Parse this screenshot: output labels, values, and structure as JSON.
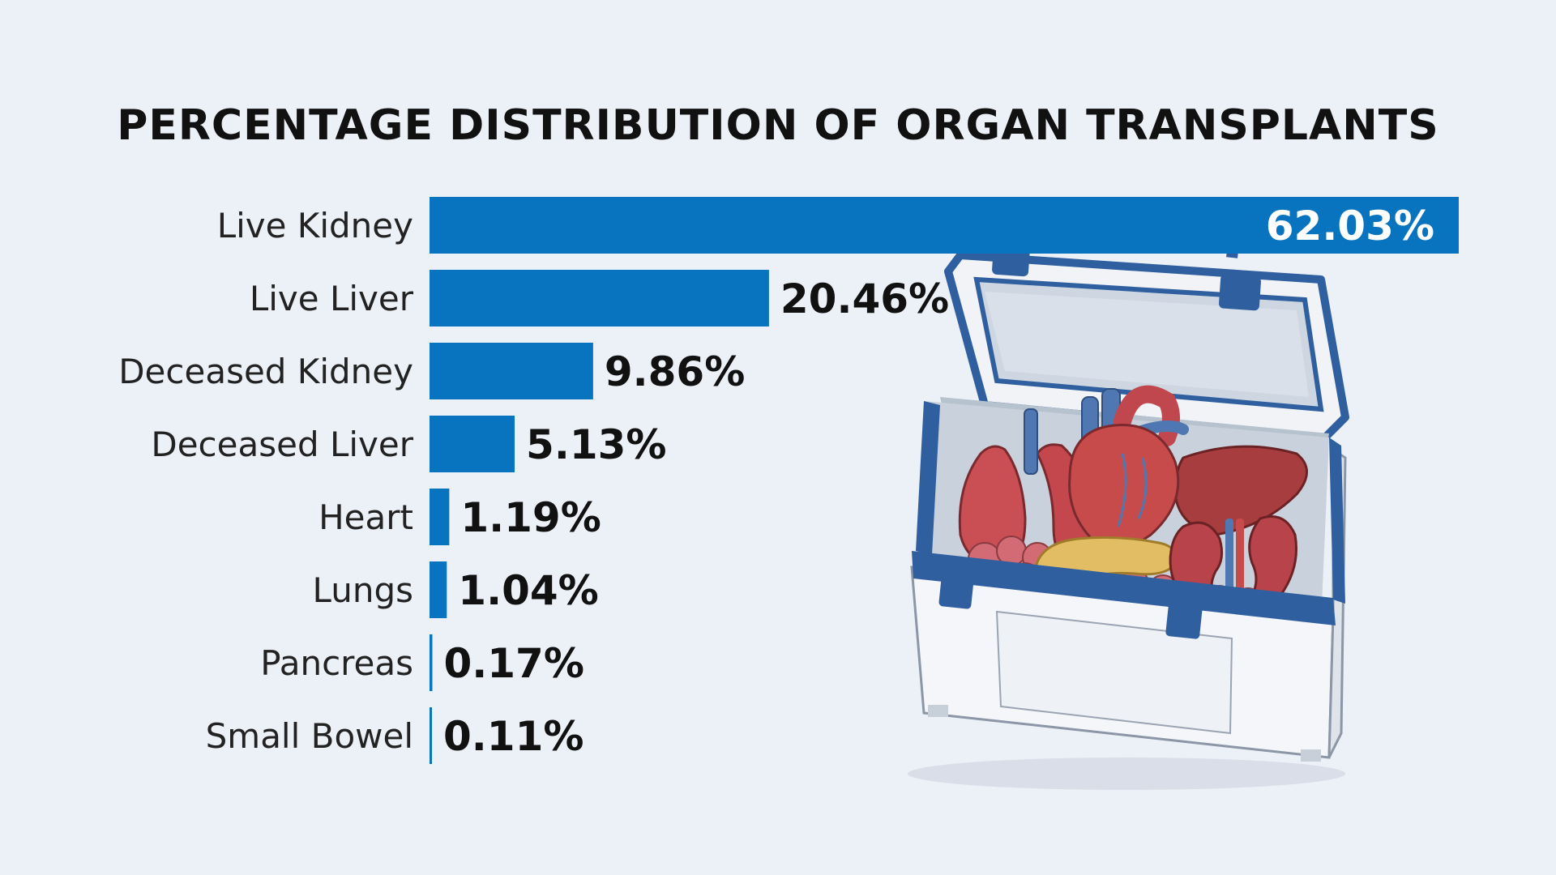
{
  "chart_data": {
    "type": "bar",
    "orientation": "horizontal",
    "title": "PERCENTAGE DISTRIBUTION OF ORGAN TRANSPLANTS",
    "categories": [
      "Live Kidney",
      "Live Liver",
      "Deceased Kidney",
      "Deceased Liver",
      "Heart",
      "Lungs",
      "Pancreas",
      "Small Bowel"
    ],
    "values": [
      62.03,
      20.46,
      9.86,
      5.13,
      1.19,
      1.04,
      0.17,
      0.11
    ],
    "value_labels": [
      "62.03%",
      "20.46%",
      "9.86%",
      "5.13%",
      "1.19%",
      "1.04%",
      "0.17%",
      "0.11%"
    ],
    "xlim": [
      0,
      62.03
    ],
    "grid": false,
    "legend": "none",
    "bar_color": "#0874bf"
  },
  "illustration": {
    "icon": "cooler-with-organs-icon",
    "colors": {
      "cooler_body": "#f1f3f6",
      "cooler_trim": "#2f5f9e",
      "organ_red": "#c84b4b",
      "pancreas": "#e3bd63"
    }
  },
  "colors": {
    "background": "#ecf0f7",
    "title": "#111111",
    "label": "#222222",
    "value": "#111111",
    "value_inside": "#ffffff"
  }
}
